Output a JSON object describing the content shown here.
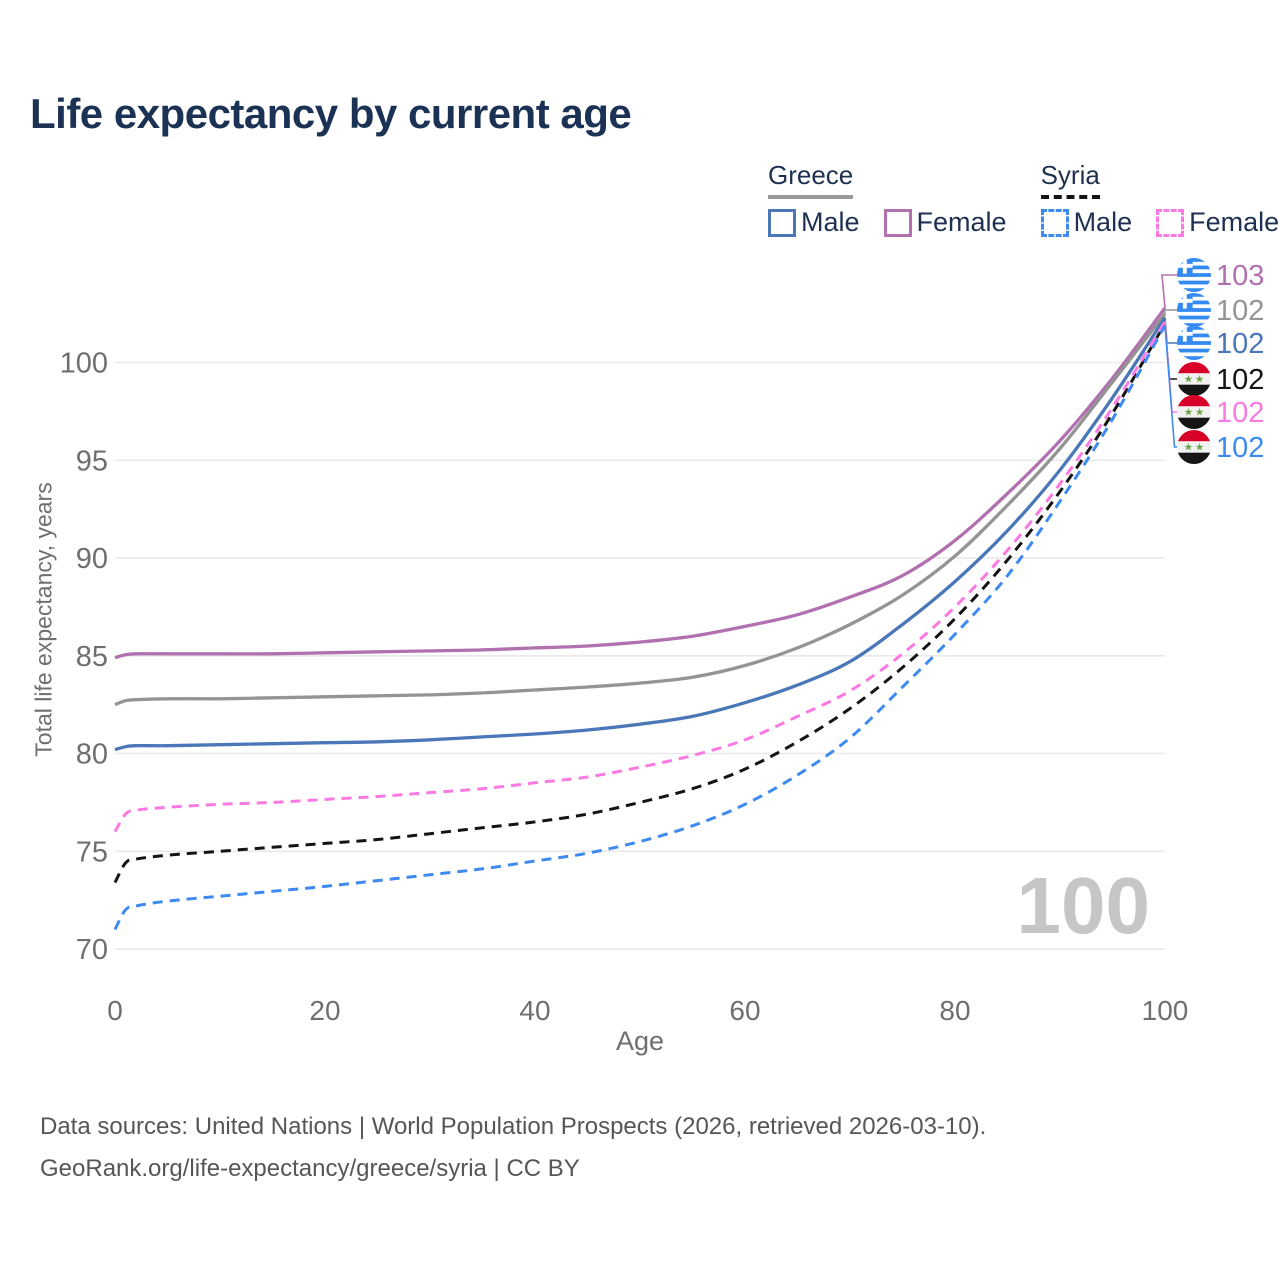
{
  "header": {
    "title": "Life expectancy by current age"
  },
  "legend": {
    "groups": [
      {
        "name": "Greece",
        "line_style": "solid",
        "underline_color": "#9a9a9a",
        "items": [
          {
            "label": "Male",
            "color": "#4a77b8"
          },
          {
            "label": "Female",
            "color": "#b170af"
          }
        ]
      },
      {
        "name": "Syria",
        "line_style": "dashed",
        "underline_color": "#141414",
        "items": [
          {
            "label": "Male",
            "color": "#3d8af0"
          },
          {
            "label": "Female",
            "color": "#fb79e3"
          }
        ]
      }
    ]
  },
  "watermark": "100",
  "footer": {
    "line1": "Data sources: United Nations | World Population Prospects (2026, retrieved 2026-03-10).",
    "line2": "GeoRank.org/life-expectancy/greece/syria | CC BY"
  },
  "colors": {
    "title": "#1b3254",
    "legend_text": "#1f3150",
    "axis_text": "#6f6f6f",
    "grid": "#e9e9e9",
    "watermark": "#c6c6c6",
    "footer_text": "#565656",
    "greece_flag_blue": "#338af3",
    "syria_flag_red": "#d80027",
    "syria_flag_green": "#6da544"
  },
  "chart_data": {
    "type": "line",
    "title": "Life expectancy by current age",
    "xlabel": "Age",
    "ylabel": "Total life expectancy, years",
    "xlim": [
      0,
      100
    ],
    "ylim": [
      70,
      103
    ],
    "x_ticks": [
      0,
      20,
      40,
      60,
      80,
      100
    ],
    "y_ticks": [
      70,
      75,
      80,
      85,
      90,
      95,
      100
    ],
    "grid": "horizontal",
    "legend_position": "top-right",
    "ages": [
      0,
      1,
      2,
      5,
      10,
      15,
      20,
      25,
      30,
      35,
      40,
      45,
      50,
      55,
      60,
      65,
      70,
      75,
      80,
      85,
      90,
      95,
      100
    ],
    "series": [
      {
        "id": "greece-female",
        "country": "Greece",
        "sex": "Female",
        "color": "#b170af",
        "dashed": false,
        "end_value": 103,
        "values": [
          84.9,
          85.05,
          85.1,
          85.1,
          85.1,
          85.1,
          85.15,
          85.2,
          85.25,
          85.3,
          85.4,
          85.5,
          85.7,
          86.0,
          86.5,
          87.1,
          88.0,
          89.1,
          90.9,
          93.3,
          96.0,
          99.2,
          102.8
        ]
      },
      {
        "id": "greece-all",
        "country": "Greece",
        "sex": "Both sexes",
        "color": "#949494",
        "dashed": false,
        "end_value": 102,
        "values": [
          82.5,
          82.7,
          82.75,
          82.8,
          82.8,
          82.85,
          82.9,
          82.95,
          83.0,
          83.1,
          83.25,
          83.4,
          83.6,
          83.9,
          84.5,
          85.4,
          86.6,
          88.1,
          90.1,
          92.7,
          95.6,
          99.0,
          102.5
        ]
      },
      {
        "id": "greece-male",
        "country": "Greece",
        "sex": "Male",
        "color": "#4a77b8",
        "dashed": false,
        "end_value": 102,
        "values": [
          80.2,
          80.35,
          80.4,
          80.4,
          80.45,
          80.5,
          80.55,
          80.6,
          80.7,
          80.85,
          81.0,
          81.2,
          81.5,
          81.9,
          82.6,
          83.5,
          84.7,
          86.6,
          88.8,
          91.4,
          94.5,
          98.2,
          102.3
        ]
      },
      {
        "id": "syria-all",
        "country": "Syria",
        "sex": "Both sexes",
        "color": "#141414",
        "dashed": true,
        "end_value": 102,
        "values": [
          73.4,
          74.4,
          74.6,
          74.8,
          75.0,
          75.2,
          75.4,
          75.6,
          75.9,
          76.2,
          76.5,
          76.9,
          77.5,
          78.2,
          79.2,
          80.6,
          82.3,
          84.4,
          86.9,
          89.9,
          93.4,
          97.4,
          102.0
        ]
      },
      {
        "id": "syria-female",
        "country": "Syria",
        "sex": "Female",
        "color": "#fb79e3",
        "dashed": true,
        "end_value": 102,
        "values": [
          76.0,
          76.9,
          77.1,
          77.25,
          77.4,
          77.5,
          77.65,
          77.8,
          78.0,
          78.2,
          78.5,
          78.8,
          79.3,
          79.9,
          80.7,
          81.9,
          83.2,
          85.1,
          87.5,
          90.4,
          93.8,
          97.7,
          102.1
        ]
      },
      {
        "id": "syria-male",
        "country": "Syria",
        "sex": "Male",
        "color": "#3d8af0",
        "dashed": true,
        "end_value": 102,
        "values": [
          71.0,
          72.0,
          72.2,
          72.45,
          72.7,
          72.95,
          73.2,
          73.5,
          73.8,
          74.1,
          74.5,
          74.9,
          75.5,
          76.3,
          77.4,
          78.9,
          80.8,
          83.4,
          86.1,
          89.1,
          92.9,
          97.1,
          101.9
        ]
      }
    ],
    "end_labels": [
      {
        "series": "greece-female",
        "value": "103",
        "flag": "greece"
      },
      {
        "series": "greece-all",
        "value": "102",
        "flag": "greece"
      },
      {
        "series": "greece-male",
        "value": "102",
        "flag": "greece"
      },
      {
        "series": "syria-all",
        "value": "102",
        "flag": "syria"
      },
      {
        "series": "syria-female",
        "value": "102",
        "flag": "syria"
      },
      {
        "series": "syria-male",
        "value": "102",
        "flag": "syria"
      }
    ]
  }
}
